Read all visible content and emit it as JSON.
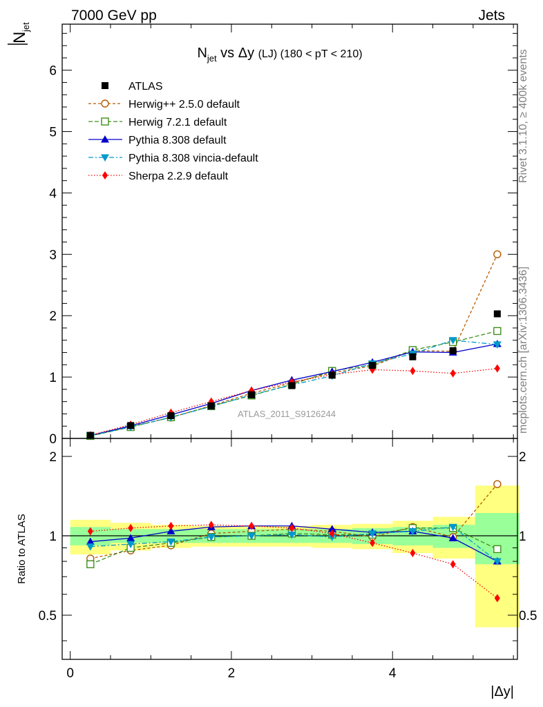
{
  "header": {
    "left": "7000 GeV pp",
    "right": "Jets",
    "watermark": "ATLAS_2011_S9126244",
    "side_top": "Rivet 3.1.10, ≥ 400k events",
    "side_bottom": "mcplots.cern.ch [arXiv:1306.3436]"
  },
  "chart_data": {
    "type": "line",
    "title_main": "N",
    "title_sub": "jet",
    "title_rest": " vs Δy ",
    "title_small": "(LJ)",
    "title_tail": " (180 < pT < 210)",
    "ylabel_bar": "N",
    "ylabel_sub": "jet",
    "ratio_ylabel": "Ratio to ATLAS",
    "xlabel": "|Δy|",
    "xlim": [
      -0.1,
      5.55
    ],
    "ylim": [
      0,
      6.75
    ],
    "ratio_ylim": [
      0.34,
      2.34
    ],
    "x_ticks": [
      "0",
      "2",
      "4"
    ],
    "y_ticks": [
      "0",
      "1",
      "2",
      "3",
      "4",
      "5",
      "6"
    ],
    "ratio_ticks": [
      "0.5",
      "1",
      "2"
    ],
    "x": [
      0.25,
      0.75,
      1.25,
      1.75,
      2.25,
      2.75,
      3.25,
      3.75,
      4.25,
      4.75,
      5.3
    ],
    "data": {
      "name": "ATLAS",
      "values": [
        0.05,
        0.21,
        0.37,
        0.53,
        0.71,
        0.86,
        1.03,
        1.19,
        1.33,
        1.43,
        2.03
      ],
      "band_inner": [
        0.08,
        0.06,
        0.06,
        0.06,
        0.06,
        0.06,
        0.06,
        0.07,
        0.08,
        0.1,
        0.22
      ],
      "band_outer": [
        0.15,
        0.12,
        0.1,
        0.09,
        0.09,
        0.09,
        0.1,
        0.11,
        0.14,
        0.18,
        0.55
      ]
    },
    "series": [
      {
        "name": "Herwig++ 2.5.0 default",
        "color": "#b35900",
        "dash": "4,3",
        "marker": "circle",
        "values": [
          0.042,
          0.195,
          0.34,
          0.535,
          0.735,
          0.905,
          1.07,
          1.18,
          1.43,
          1.42,
          3.0
        ],
        "ratio": [
          0.82,
          0.88,
          0.92,
          1.02,
          1.04,
          1.06,
          1.04,
          0.99,
          1.08,
          0.99,
          1.57
        ]
      },
      {
        "name": "Herwig 7.2.1 default",
        "color": "#3f8f1a",
        "dash": "6,3",
        "marker": "square",
        "values": [
          0.04,
          0.185,
          0.345,
          0.525,
          0.7,
          0.88,
          1.1,
          1.2,
          1.44,
          1.57,
          1.75
        ],
        "ratio": [
          0.78,
          0.9,
          0.94,
          0.99,
          1.0,
          1.02,
          1.01,
          1.01,
          1.07,
          1.07,
          0.89
        ]
      },
      {
        "name": "Pythia 8.308 default",
        "color": "#0000cc",
        "dash": "",
        "marker": "triangle-up",
        "values": [
          0.048,
          0.205,
          0.385,
          0.57,
          0.78,
          0.95,
          1.09,
          1.24,
          1.41,
          1.4,
          1.54
        ],
        "ratio": [
          0.95,
          0.98,
          1.04,
          1.08,
          1.09,
          1.09,
          1.06,
          1.03,
          1.04,
          0.98,
          0.8
        ]
      },
      {
        "name": "Pythia 8.308 vincia-default",
        "color": "#0099cc",
        "dash": "7,3,2,3",
        "marker": "triangle-down",
        "values": [
          0.045,
          0.185,
          0.345,
          0.52,
          0.71,
          0.87,
          1.02,
          1.22,
          1.38,
          1.6,
          1.53
        ],
        "ratio": [
          0.91,
          0.93,
          0.95,
          0.99,
          1.0,
          1.01,
          0.99,
          1.02,
          1.04,
          1.08,
          0.8
        ]
      },
      {
        "name": "Sherpa 2.2.9 default",
        "color": "#ff0000",
        "dash": "1.5,2.5",
        "marker": "diamond",
        "values": [
          0.052,
          0.225,
          0.42,
          0.6,
          0.78,
          0.92,
          1.04,
          1.12,
          1.1,
          1.06,
          1.14
        ],
        "ratio": [
          1.04,
          1.07,
          1.09,
          1.1,
          1.09,
          1.07,
          1.02,
          0.94,
          0.86,
          0.78,
          0.58
        ]
      }
    ]
  }
}
